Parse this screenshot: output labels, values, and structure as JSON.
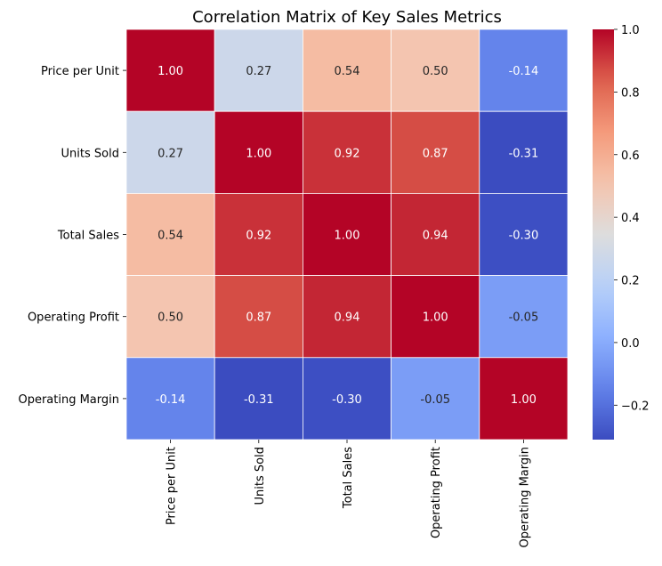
{
  "chart_data": {
    "type": "heatmap",
    "title": "Correlation Matrix of Key Sales Metrics",
    "xlabel": "",
    "ylabel": "",
    "rows": [
      "Price per Unit",
      "Units Sold",
      "Total Sales",
      "Operating Profit",
      "Operating Margin"
    ],
    "columns": [
      "Price per Unit",
      "Units Sold",
      "Total Sales",
      "Operating Profit",
      "Operating Margin"
    ],
    "values": [
      [
        1.0,
        0.27,
        0.54,
        0.5,
        -0.14
      ],
      [
        0.27,
        1.0,
        0.92,
        0.87,
        -0.31
      ],
      [
        0.54,
        0.92,
        1.0,
        0.94,
        -0.3
      ],
      [
        0.5,
        0.87,
        0.94,
        1.0,
        -0.05
      ],
      [
        -0.14,
        -0.31,
        -0.3,
        -0.05,
        1.0
      ]
    ],
    "value_labels": [
      [
        "1.00",
        "0.27",
        "0.54",
        "0.50",
        "-0.14"
      ],
      [
        "0.27",
        "1.00",
        "0.92",
        "0.87",
        "-0.31"
      ],
      [
        "0.54",
        "0.92",
        "1.00",
        "0.94",
        "-0.30"
      ],
      [
        "0.50",
        "0.87",
        "0.94",
        "1.00",
        "-0.05"
      ],
      [
        "-0.14",
        "-0.31",
        "-0.30",
        "-0.05",
        "1.00"
      ]
    ],
    "colormap": "coolwarm",
    "colorbar": {
      "range": [
        -0.31,
        1.0
      ],
      "ticks": [
        -0.2,
        0.0,
        0.2,
        0.4,
        0.6,
        0.8,
        1.0
      ],
      "tick_labels": [
        "−0.2",
        "0.0",
        "0.2",
        "0.4",
        "0.6",
        "0.8",
        "1.0"
      ]
    },
    "colors": {
      "cell_border": "#ffffff",
      "text_dark": "#262626",
      "text_light": "#ffffff"
    }
  }
}
